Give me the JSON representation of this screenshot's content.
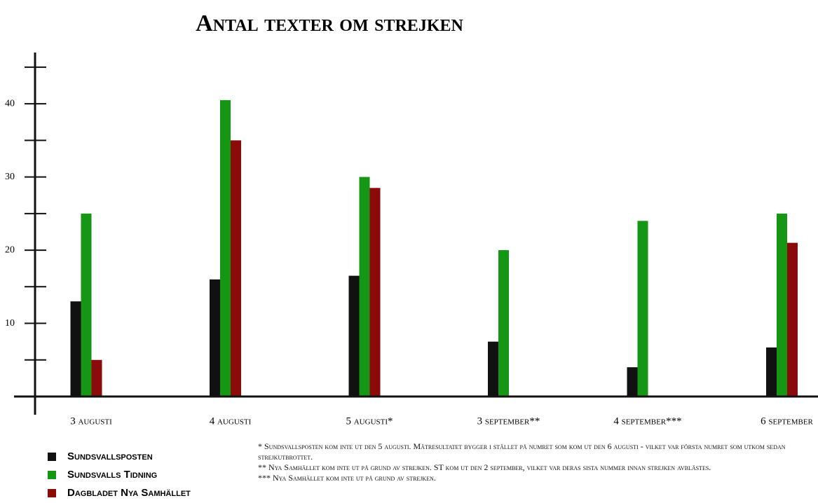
{
  "chart_data": {
    "type": "bar",
    "title": "Antal texter om strejken",
    "categories": [
      "3 augusti",
      "4 augusti",
      "5 augusti*",
      "3 september**",
      "4 september***",
      "6 september"
    ],
    "series": [
      {
        "name": "Sundsvallsposten",
        "color": "#111111",
        "values": [
          13,
          16,
          16.5,
          7.5,
          4,
          6.7
        ]
      },
      {
        "name": "Sundsvalls Tidning",
        "color": "#159615",
        "values": [
          25,
          40.5,
          30,
          20,
          24,
          25
        ]
      },
      {
        "name": "Dagbladet Nya Samhället",
        "color": "#8b0a0a",
        "values": [
          5,
          35,
          28.5,
          null,
          null,
          21
        ]
      }
    ],
    "ylim": [
      0,
      47
    ],
    "yticks": [
      10,
      20,
      30,
      40
    ],
    "minor_yticks": [
      5,
      15,
      25,
      35,
      45
    ],
    "notes": [
      "* Sundsvallsposten kom inte ut den 5 augusti. Mätresultatet bygger i stället på numret som kom ut den 6 augusti - vilket var första numret som utkom sedan strejkutbrottet.",
      "** Nya Samhället kom inte ut på grund av strejken. ST kom ut den 2 september, vilket var deras sista nummer innan strejken avblästes.",
      "*** Nya Samhället kom inte ut på grund av strejken."
    ]
  }
}
